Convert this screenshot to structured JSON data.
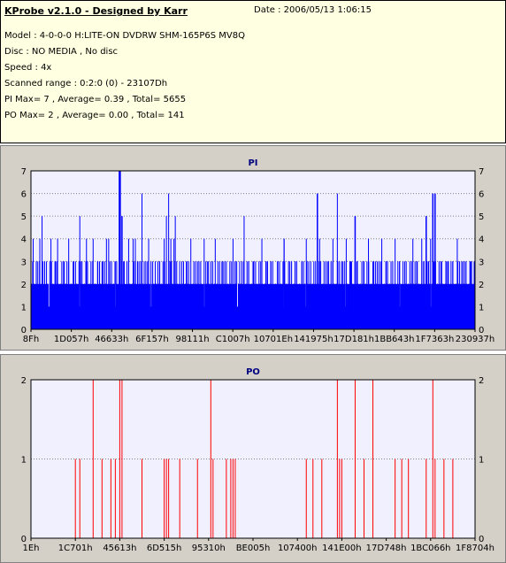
{
  "header": {
    "title": "KProbe v2.1.0 - Designed by Karr",
    "date": "Date : 2006/05/13 1:06:15",
    "lines": [
      "Model : 4-0-0-0 H:LITE-ON DVDRW SHM-165P6S MV8Q",
      "Disc : NO MEDIA , No disc",
      "Speed : 4x",
      "Scanned range : 0:2:0 (0) - 23107Dh",
      "PI Max= 7 , Average= 0.39 , Total= 5655",
      "PO Max= 2 , Average= 0.00 , Total= 141"
    ]
  },
  "chart_data": [
    {
      "type": "bar",
      "title": "PI",
      "ylim": [
        0,
        7
      ],
      "yticks": [
        0,
        1,
        2,
        3,
        4,
        5,
        6,
        7
      ],
      "grid": true,
      "color": "#0000ff",
      "xticks": [
        "8Fh",
        "1D057h",
        "46633h",
        "6F157h",
        "98111h",
        "C1007h",
        "10701Eh",
        "141975h",
        "17D181h",
        "1BB643h",
        "1F7363h",
        "230937h"
      ],
      "x_range": [
        0,
        1
      ],
      "baseline": 2,
      "low_dips": [
        0.04,
        0.11,
        0.19,
        0.27,
        0.39,
        0.465,
        0.57,
        0.62,
        0.71,
        0.83,
        0.9
      ],
      "spikes": [
        [
          0.005,
          4
        ],
        [
          0.012,
          3
        ],
        [
          0.02,
          4
        ],
        [
          0.025,
          5
        ],
        [
          0.035,
          3
        ],
        [
          0.045,
          4
        ],
        [
          0.055,
          3
        ],
        [
          0.06,
          4
        ],
        [
          0.075,
          3
        ],
        [
          0.085,
          4
        ],
        [
          0.095,
          3
        ],
        [
          0.11,
          5
        ],
        [
          0.115,
          3
        ],
        [
          0.125,
          4
        ],
        [
          0.14,
          4
        ],
        [
          0.15,
          3
        ],
        [
          0.16,
          3
        ],
        [
          0.175,
          4
        ],
        [
          0.19,
          3
        ],
        [
          0.2,
          5
        ],
        [
          0.21,
          3
        ],
        [
          0.22,
          4
        ],
        [
          0.235,
          4
        ],
        [
          0.24,
          3
        ],
        [
          0.25,
          6
        ],
        [
          0.255,
          3
        ],
        [
          0.265,
          4
        ],
        [
          0.28,
          3
        ],
        [
          0.29,
          3
        ],
        [
          0.3,
          4
        ],
        [
          0.305,
          5
        ],
        [
          0.31,
          6
        ],
        [
          0.315,
          4
        ],
        [
          0.322,
          4
        ],
        [
          0.325,
          5
        ],
        [
          0.2,
          4
        ],
        [
          0.335,
          3
        ],
        [
          0.35,
          3
        ],
        [
          0.36,
          4
        ],
        [
          0.375,
          3
        ],
        [
          0.39,
          4
        ],
        [
          0.4,
          3
        ],
        [
          0.415,
          4
        ],
        [
          0.43,
          3
        ],
        [
          0.44,
          3
        ],
        [
          0.455,
          4
        ],
        [
          0.46,
          3
        ],
        [
          0.47,
          3
        ],
        [
          0.48,
          5
        ],
        [
          0.49,
          3
        ],
        [
          0.5,
          3
        ],
        [
          0.52,
          4
        ],
        [
          0.53,
          3
        ],
        [
          0.54,
          3
        ],
        [
          0.555,
          3
        ],
        [
          0.57,
          4
        ],
        [
          0.58,
          3
        ],
        [
          0.595,
          3
        ],
        [
          0.61,
          3
        ],
        [
          0.62,
          4
        ],
        [
          0.63,
          3
        ],
        [
          0.645,
          4
        ],
        [
          0.65,
          4
        ],
        [
          0.66,
          3
        ],
        [
          0.67,
          3
        ],
        [
          0.68,
          4
        ],
        [
          0.69,
          3
        ],
        [
          0.7,
          3
        ],
        [
          0.71,
          4
        ],
        [
          0.72,
          3
        ],
        [
          0.73,
          5
        ],
        [
          0.735,
          3
        ],
        [
          0.75,
          3
        ],
        [
          0.76,
          4
        ],
        [
          0.77,
          3
        ],
        [
          0.78,
          3
        ],
        [
          0.79,
          4
        ],
        [
          0.8,
          3
        ],
        [
          0.82,
          4
        ],
        [
          0.83,
          3
        ],
        [
          0.845,
          3
        ],
        [
          0.86,
          4
        ],
        [
          0.87,
          3
        ],
        [
          0.88,
          4
        ],
        [
          0.885,
          3
        ],
        [
          0.895,
          3
        ],
        [
          0.9,
          4
        ],
        [
          0.91,
          3
        ],
        [
          0.925,
          3
        ],
        [
          0.935,
          3
        ],
        [
          0.94,
          3
        ],
        [
          0.95,
          3
        ],
        [
          0.96,
          4
        ],
        [
          0.97,
          3
        ],
        [
          0.98,
          3
        ],
        [
          0.99,
          3
        ],
        [
          0.998,
          3
        ],
        [
          0.0,
          3
        ],
        [
          0.17,
          4
        ],
        [
          0.23,
          4
        ],
        [
          0.57,
          4
        ],
        [
          0.69,
          6
        ]
      ],
      "max_spikes": [
        [
          0.2,
          6
        ],
        [
          0.199,
          7
        ],
        [
          0.201,
          7
        ],
        [
          0.205,
          5
        ],
        [
          0.645,
          6
        ],
        [
          0.73,
          5
        ],
        [
          0.91,
          6
        ],
        [
          0.905,
          6
        ],
        [
          0.89,
          5
        ]
      ]
    },
    {
      "type": "bar",
      "title": "PO",
      "ylim": [
        0,
        2
      ],
      "yticks": [
        0,
        1,
        2
      ],
      "grid": true,
      "color": "#ff0000",
      "xticks": [
        "1Eh",
        "1C701h",
        "45613h",
        "6D515h",
        "95310h",
        "BE005h",
        "107400h",
        "141E00h",
        "17D748h",
        "1BC066h",
        "1F8704h"
      ],
      "x_range": [
        0,
        1
      ],
      "spikes": [
        [
          0.1,
          1
        ],
        [
          0.11,
          1
        ],
        [
          0.14,
          2
        ],
        [
          0.16,
          1
        ],
        [
          0.18,
          1
        ],
        [
          0.19,
          1
        ],
        [
          0.2,
          2
        ],
        [
          0.205,
          2
        ],
        [
          0.25,
          1
        ],
        [
          0.3,
          1
        ],
        [
          0.305,
          1
        ],
        [
          0.31,
          1
        ],
        [
          0.335,
          1
        ],
        [
          0.375,
          1
        ],
        [
          0.405,
          2
        ],
        [
          0.41,
          1
        ],
        [
          0.44,
          1
        ],
        [
          0.45,
          1
        ],
        [
          0.455,
          1
        ],
        [
          0.46,
          1
        ],
        [
          0.62,
          1
        ],
        [
          0.635,
          1
        ],
        [
          0.655,
          1
        ],
        [
          0.69,
          2
        ],
        [
          0.695,
          1
        ],
        [
          0.7,
          1
        ],
        [
          0.73,
          2
        ],
        [
          0.75,
          1
        ],
        [
          0.77,
          2
        ],
        [
          0.82,
          1
        ],
        [
          0.835,
          1
        ],
        [
          0.85,
          1
        ],
        [
          0.89,
          1
        ],
        [
          0.905,
          2
        ],
        [
          0.91,
          1
        ],
        [
          0.93,
          1
        ],
        [
          0.95,
          1
        ]
      ]
    }
  ]
}
